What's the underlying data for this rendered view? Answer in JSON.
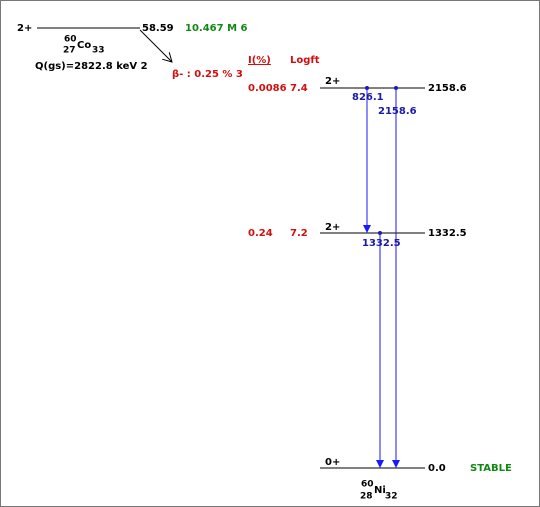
{
  "parent": {
    "spin": "2+",
    "energy": "58.59",
    "half_life": "10.467 M 6",
    "mass": "60",
    "z": "27",
    "element": "Co",
    "n": "33",
    "q_value": "Q(gs)=2822.8 keV 2"
  },
  "decay_label": "β- : 0.25 % 3",
  "headers": {
    "intensity": "I(%)",
    "logft": "Logft"
  },
  "levels": [
    {
      "spin": "2+",
      "energy": "2158.6",
      "intensity": "0.0086",
      "logft": "7.4"
    },
    {
      "spin": "2+",
      "energy": "1332.5",
      "intensity": "0.24",
      "logft": "7.2"
    },
    {
      "spin": "0+",
      "energy": "0.0",
      "status": "STABLE"
    }
  ],
  "gammas": [
    {
      "energy": "826.1"
    },
    {
      "energy": "2158.6"
    },
    {
      "energy": "1332.5"
    }
  ],
  "daughter": {
    "mass": "60",
    "z": "28",
    "element": "Ni",
    "n": "32"
  }
}
